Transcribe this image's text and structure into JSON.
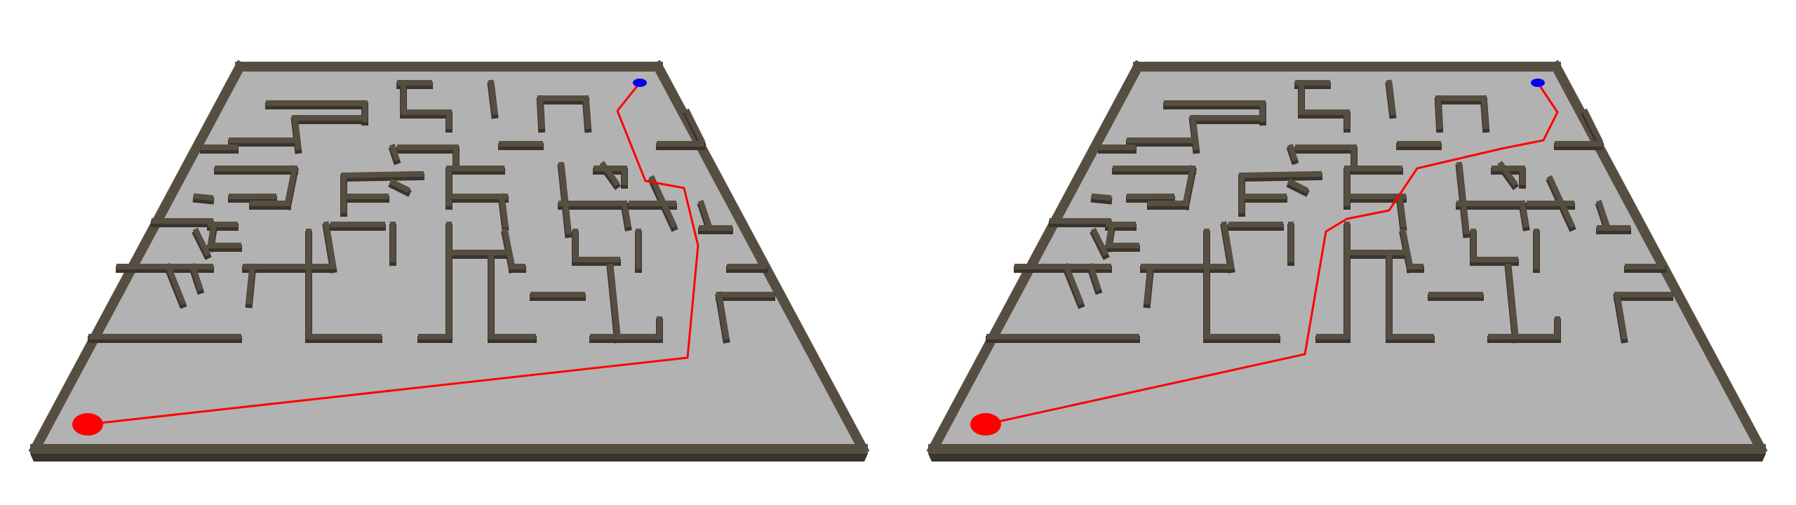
{
  "panels": [
    {
      "id": "left",
      "path_name": "path-left"
    },
    {
      "id": "right",
      "path_name": "path-right"
    }
  ],
  "colors": {
    "background": "#ffffff",
    "floor": "#b2b2b2",
    "wall_top": "#574e42",
    "wall_side": "#3b342c",
    "wall_edge": "#2a241e",
    "path": "#ff0000",
    "start_marker": "#ff0000",
    "goal_marker": "#0000ee"
  },
  "markers": {
    "start": "start-marker",
    "goal": "goal-marker"
  }
}
